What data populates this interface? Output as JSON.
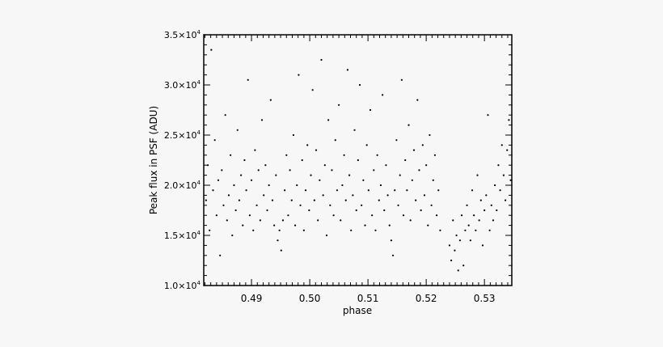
{
  "chart_data": {
    "type": "scatter",
    "title": "",
    "xlabel": "phase",
    "ylabel": "Peak flux in PSF (ADU)",
    "xlim": [
      0.4818,
      0.5347
    ],
    "ylim": [
      10000,
      35000
    ],
    "xticks": [
      0.49,
      0.5,
      0.51,
      0.52,
      0.53
    ],
    "xtick_labels": [
      "0.49",
      "0.50",
      "0.51",
      "0.52",
      "0.53"
    ],
    "yticks": [
      10000,
      15000,
      20000,
      25000,
      30000,
      35000
    ],
    "ytick_labels": [
      {
        "mantissa": "1.0",
        "exp": "4"
      },
      {
        "mantissa": "1.5",
        "exp": "4"
      },
      {
        "mantissa": "2.0",
        "exp": "4"
      },
      {
        "mantissa": "2.5",
        "exp": "4"
      },
      {
        "mantissa": "3.0",
        "exp": "4"
      },
      {
        "mantissa": "3.5",
        "exp": "4"
      }
    ],
    "grid": false,
    "marker_color": "#000000",
    "points": [
      [
        0.4822,
        18500
      ],
      [
        0.4825,
        22000
      ],
      [
        0.4828,
        15500
      ],
      [
        0.4831,
        33500
      ],
      [
        0.4834,
        19500
      ],
      [
        0.4837,
        24500
      ],
      [
        0.484,
        17000
      ],
      [
        0.4843,
        20500
      ],
      [
        0.4846,
        13000
      ],
      [
        0.4849,
        21500
      ],
      [
        0.4852,
        18000
      ],
      [
        0.4855,
        27000
      ],
      [
        0.4858,
        16500
      ],
      [
        0.4861,
        19000
      ],
      [
        0.4864,
        23000
      ],
      [
        0.4867,
        15000
      ],
      [
        0.487,
        20000
      ],
      [
        0.4873,
        17500
      ],
      [
        0.4876,
        25500
      ],
      [
        0.4879,
        18500
      ],
      [
        0.4882,
        21000
      ],
      [
        0.4885,
        16000
      ],
      [
        0.4888,
        22500
      ],
      [
        0.4891,
        19500
      ],
      [
        0.4894,
        30500
      ],
      [
        0.4897,
        17000
      ],
      [
        0.49,
        20500
      ],
      [
        0.4903,
        15500
      ],
      [
        0.4906,
        23500
      ],
      [
        0.4909,
        18000
      ],
      [
        0.4912,
        21500
      ],
      [
        0.4915,
        16500
      ],
      [
        0.4918,
        26500
      ],
      [
        0.4921,
        19000
      ],
      [
        0.4924,
        22000
      ],
      [
        0.4927,
        17500
      ],
      [
        0.493,
        20000
      ],
      [
        0.4933,
        28500
      ],
      [
        0.4936,
        18500
      ],
      [
        0.4939,
        16000
      ],
      [
        0.4942,
        21000
      ],
      [
        0.4945,
        14500
      ],
      [
        0.4948,
        15500
      ],
      [
        0.4951,
        13500
      ],
      [
        0.4954,
        16500
      ],
      [
        0.4957,
        19500
      ],
      [
        0.496,
        23000
      ],
      [
        0.4963,
        17000
      ],
      [
        0.4966,
        21500
      ],
      [
        0.4969,
        18500
      ],
      [
        0.4972,
        25000
      ],
      [
        0.4975,
        16000
      ],
      [
        0.4978,
        20000
      ],
      [
        0.4981,
        31000
      ],
      [
        0.4984,
        18000
      ],
      [
        0.4987,
        22500
      ],
      [
        0.499,
        15500
      ],
      [
        0.4993,
        19500
      ],
      [
        0.4996,
        24000
      ],
      [
        0.4999,
        17500
      ],
      [
        0.5002,
        21000
      ],
      [
        0.5005,
        29500
      ],
      [
        0.5008,
        18500
      ],
      [
        0.5011,
        23500
      ],
      [
        0.5014,
        16500
      ],
      [
        0.5017,
        20500
      ],
      [
        0.502,
        32500
      ],
      [
        0.5023,
        19000
      ],
      [
        0.5026,
        22000
      ],
      [
        0.5029,
        15000
      ],
      [
        0.5032,
        26500
      ],
      [
        0.5035,
        18000
      ],
      [
        0.5038,
        21500
      ],
      [
        0.5041,
        17000
      ],
      [
        0.5044,
        24500
      ],
      [
        0.5047,
        19500
      ],
      [
        0.505,
        28000
      ],
      [
        0.5053,
        16500
      ],
      [
        0.5056,
        20000
      ],
      [
        0.5059,
        23000
      ],
      [
        0.5062,
        18500
      ],
      [
        0.5065,
        31500
      ],
      [
        0.5068,
        21000
      ],
      [
        0.5071,
        15500
      ],
      [
        0.5074,
        19000
      ],
      [
        0.5077,
        25500
      ],
      [
        0.508,
        17500
      ],
      [
        0.5083,
        22500
      ],
      [
        0.5086,
        30000
      ],
      [
        0.5089,
        18000
      ],
      [
        0.5092,
        20500
      ],
      [
        0.5095,
        16000
      ],
      [
        0.5098,
        24000
      ],
      [
        0.5101,
        19500
      ],
      [
        0.5104,
        27500
      ],
      [
        0.5107,
        17000
      ],
      [
        0.511,
        21500
      ],
      [
        0.5113,
        15500
      ],
      [
        0.5116,
        23000
      ],
      [
        0.5119,
        18500
      ],
      [
        0.5122,
        20000
      ],
      [
        0.5125,
        29000
      ],
      [
        0.5128,
        17500
      ],
      [
        0.5131,
        22000
      ],
      [
        0.5134,
        19000
      ],
      [
        0.5137,
        16000
      ],
      [
        0.514,
        14500
      ],
      [
        0.5143,
        13000
      ],
      [
        0.5146,
        19500
      ],
      [
        0.5149,
        24500
      ],
      [
        0.5152,
        18000
      ],
      [
        0.5155,
        21000
      ],
      [
        0.5158,
        30500
      ],
      [
        0.5161,
        17000
      ],
      [
        0.5164,
        22500
      ],
      [
        0.5167,
        19500
      ],
      [
        0.517,
        26000
      ],
      [
        0.5173,
        16500
      ],
      [
        0.5176,
        20500
      ],
      [
        0.5179,
        23500
      ],
      [
        0.5182,
        18500
      ],
      [
        0.5185,
        28500
      ],
      [
        0.5188,
        21500
      ],
      [
        0.5191,
        17500
      ],
      [
        0.5194,
        24000
      ],
      [
        0.5197,
        19000
      ],
      [
        0.52,
        22000
      ],
      [
        0.5203,
        16000
      ],
      [
        0.5206,
        25000
      ],
      [
        0.5209,
        18000
      ],
      [
        0.5212,
        20500
      ],
      [
        0.5215,
        23000
      ],
      [
        0.5218,
        17000
      ],
      [
        0.5221,
        19500
      ],
      [
        0.5224,
        15500
      ],
      [
        0.524,
        14000
      ],
      [
        0.5243,
        12500
      ],
      [
        0.5246,
        16500
      ],
      [
        0.5249,
        13500
      ],
      [
        0.5252,
        15000
      ],
      [
        0.5255,
        11500
      ],
      [
        0.5258,
        14500
      ],
      [
        0.5261,
        17000
      ],
      [
        0.5264,
        12000
      ],
      [
        0.5267,
        15500
      ],
      [
        0.527,
        18000
      ],
      [
        0.5273,
        16000
      ],
      [
        0.5276,
        14500
      ],
      [
        0.5279,
        19500
      ],
      [
        0.5282,
        17000
      ],
      [
        0.5285,
        15500
      ],
      [
        0.5288,
        21000
      ],
      [
        0.5291,
        16500
      ],
      [
        0.5294,
        18500
      ],
      [
        0.5297,
        14000
      ],
      [
        0.53,
        17500
      ],
      [
        0.5303,
        19000
      ],
      [
        0.5306,
        27000
      ],
      [
        0.5309,
        15500
      ],
      [
        0.5312,
        18000
      ],
      [
        0.5315,
        16500
      ],
      [
        0.5318,
        20000
      ],
      [
        0.5321,
        17500
      ],
      [
        0.5324,
        22000
      ],
      [
        0.5327,
        19500
      ],
      [
        0.533,
        24000
      ],
      [
        0.5333,
        21000
      ],
      [
        0.5336,
        18500
      ],
      [
        0.5339,
        23500
      ],
      [
        0.5342,
        26500
      ],
      [
        0.5345,
        20500
      ]
    ]
  }
}
